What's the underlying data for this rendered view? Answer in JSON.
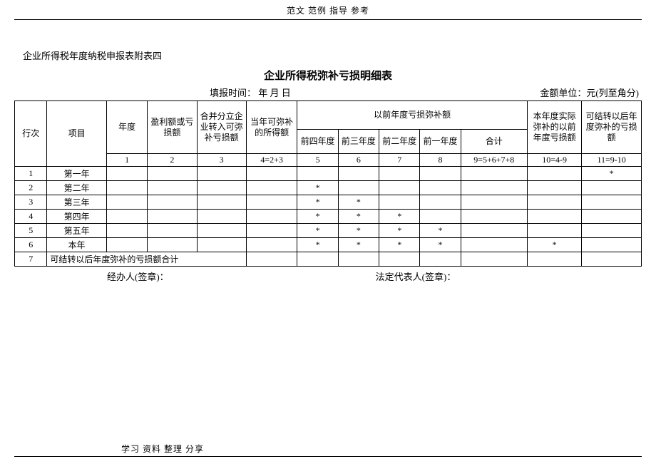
{
  "header": "范文 范例   指导 参考",
  "footer": "学习 资料  整理 分享",
  "subtitle": "企业所得税年度纳税申报表附表四",
  "title": "企业所得税弥补亏损明细表",
  "meta": {
    "fill_time_label": "填报时间：",
    "fill_time_value": "年  月  日",
    "unit": "金额单位：元(列至角分)"
  },
  "columns": {
    "row_num": "行次",
    "item": "项目",
    "year": "年度",
    "profit_loss": "盈利额或亏损额",
    "merge_split": "合并分立企业转入可弥补亏损额",
    "current_comp": "当年可弥补的所得额",
    "prior_group": "以前年度亏损弥补额",
    "actual_comp": "本年度实际弥补的以前年度亏损额",
    "carry_forward": "可结转以后年度弥补的亏损额",
    "prev4": "前四年度",
    "prev3": "前三年度",
    "prev2": "前二年度",
    "prev1": "前一年度",
    "total": "合计"
  },
  "col_nums": {
    "c1": "1",
    "c2": "2",
    "c3": "3",
    "c4": "4=2+3",
    "c5": "5",
    "c6": "6",
    "c7": "7",
    "c8": "8",
    "c9": "9=5+6+7+8",
    "c10": "10=4-9",
    "c11": "11=9-10"
  },
  "rows": [
    {
      "n": "1",
      "item": "第一年",
      "cells": [
        "",
        "",
        "",
        "",
        "",
        "",
        "",
        "",
        "",
        "",
        "*"
      ]
    },
    {
      "n": "2",
      "item": "第二年",
      "cells": [
        "",
        "",
        "",
        "",
        "*",
        "",
        "",
        "",
        "",
        "",
        ""
      ]
    },
    {
      "n": "3",
      "item": "第三年",
      "cells": [
        "",
        "",
        "",
        "",
        "*",
        "*",
        "",
        "",
        "",
        "",
        ""
      ]
    },
    {
      "n": "4",
      "item": "第四年",
      "cells": [
        "",
        "",
        "",
        "",
        "*",
        "*",
        "*",
        "",
        "",
        "",
        ""
      ]
    },
    {
      "n": "5",
      "item": "第五年",
      "cells": [
        "",
        "",
        "",
        "",
        "*",
        "*",
        "*",
        "*",
        "",
        "",
        ""
      ]
    },
    {
      "n": "6",
      "item": "本年",
      "cells": [
        "",
        "",
        "",
        "",
        "*",
        "*",
        "*",
        "*",
        "",
        "*",
        ""
      ]
    }
  ],
  "row7": {
    "n": "7",
    "label": "可结转以后年度弥补的亏损额合计"
  },
  "signatures": {
    "left": "经办人(签章)：",
    "right": "法定代表人(签章)："
  }
}
